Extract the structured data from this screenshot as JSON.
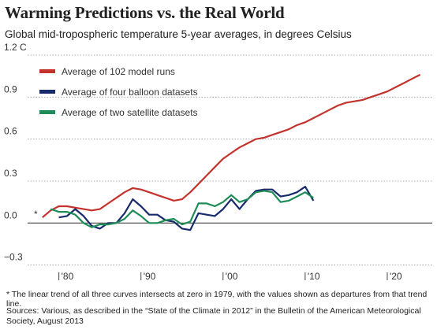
{
  "chart_data": {
    "type": "line",
    "title": "Warming Predictions vs. the Real World",
    "subtitle": "Global mid-tropospheric temperature 5-year averages, in degrees Celsius",
    "annotation": "*",
    "note": "* The linear trend of all three curves intersects at zero in 1979, with the values shown as departures from that trend line.",
    "sources": "Sources: Various, as described in the “State of the Climate in 2012” in the Bulletin of the American Meteorological Society, August 2013",
    "xlim": [
      1976,
      2025
    ],
    "ylim": [
      -0.33,
      1.2
    ],
    "xticks": [
      {
        "value": 1980,
        "label": "'80"
      },
      {
        "value": 1990,
        "label": "'90"
      },
      {
        "value": 2000,
        "label": "'00"
      },
      {
        "value": 2010,
        "label": "'10"
      },
      {
        "value": 2020,
        "label": "'20"
      }
    ],
    "yticks": [
      {
        "value": 1.2,
        "label": "1.2 C"
      },
      {
        "value": 0.9,
        "label": "0.9"
      },
      {
        "value": 0.6,
        "label": "0.6"
      },
      {
        "value": 0.3,
        "label": "0.3"
      },
      {
        "value": 0,
        "label": "0.0"
      },
      {
        "value": -0.3,
        "label": "−0.3"
      }
    ],
    "grid": true,
    "series": [
      {
        "name": "Average of 102 model runs",
        "color": "#c4322c",
        "x": [
          1978,
          1979,
          1980,
          1981,
          1982,
          1983,
          1984,
          1985,
          1986,
          1987,
          1988,
          1989,
          1990,
          1991,
          1992,
          1993,
          1994,
          1995,
          1996,
          1997,
          1998,
          1999,
          2000,
          2001,
          2002,
          2003,
          2004,
          2005,
          2006,
          2007,
          2008,
          2009,
          2010,
          2011,
          2012,
          2013,
          2014,
          2015,
          2016,
          2017,
          2018,
          2019,
          2020,
          2021,
          2022,
          2023,
          2024
        ],
        "values": [
          0.04,
          0.09,
          0.12,
          0.12,
          0.11,
          0.1,
          0.09,
          0.1,
          0.14,
          0.18,
          0.22,
          0.25,
          0.24,
          0.22,
          0.2,
          0.18,
          0.16,
          0.17,
          0.22,
          0.28,
          0.34,
          0.4,
          0.46,
          0.5,
          0.54,
          0.57,
          0.6,
          0.61,
          0.63,
          0.65,
          0.67,
          0.7,
          0.72,
          0.75,
          0.78,
          0.81,
          0.84,
          0.86,
          0.87,
          0.88,
          0.9,
          0.92,
          0.94,
          0.97,
          1.0,
          1.03,
          1.06
        ]
      },
      {
        "name": "Average of four balloon datasets",
        "color": "#172a6b",
        "x": [
          1980,
          1981,
          1982,
          1983,
          1984,
          1985,
          1986,
          1987,
          1988,
          1989,
          1990,
          1991,
          1992,
          1993,
          1994,
          1995,
          1996,
          1997,
          1998,
          1999,
          2000,
          2001,
          2002,
          2003,
          2004,
          2005,
          2006,
          2007,
          2008,
          2009,
          2010,
          2011
        ],
        "values": [
          0.04,
          0.05,
          0.1,
          0.05,
          -0.02,
          -0.04,
          0.0,
          0.0,
          0.07,
          0.17,
          0.12,
          0.06,
          0.06,
          0.02,
          0.01,
          -0.04,
          -0.05,
          0.07,
          0.06,
          0.05,
          0.1,
          0.17,
          0.1,
          0.17,
          0.23,
          0.24,
          0.24,
          0.19,
          0.2,
          0.22,
          0.26,
          0.16
        ]
      },
      {
        "name": "Average of two satellite datasets",
        "color": "#1e8c57",
        "x": [
          1979,
          1980,
          1981,
          1982,
          1983,
          1984,
          1985,
          1986,
          1987,
          1988,
          1989,
          1990,
          1991,
          1992,
          1993,
          1994,
          1995,
          1996,
          1997,
          1998,
          1999,
          2000,
          2001,
          2002,
          2003,
          2004,
          2005,
          2006,
          2007,
          2008,
          2009,
          2010,
          2011
        ],
        "values": [
          0.1,
          0.08,
          0.08,
          0.06,
          0.0,
          -0.03,
          -0.01,
          -0.01,
          0.0,
          0.03,
          0.09,
          0.05,
          0.0,
          0.0,
          0.02,
          0.03,
          -0.01,
          0.01,
          0.14,
          0.14,
          0.12,
          0.15,
          0.2,
          0.15,
          0.17,
          0.22,
          0.23,
          0.22,
          0.15,
          0.16,
          0.19,
          0.22,
          0.18
        ]
      }
    ]
  }
}
